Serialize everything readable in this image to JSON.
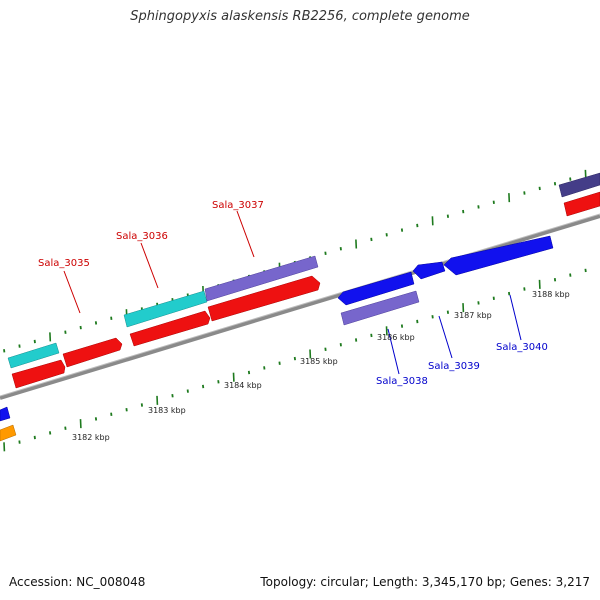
{
  "title": "Sphingopyxis alaskensis RB2256, complete genome",
  "accession": "Accession: NC_008048",
  "summary": "Topology: circular; Length: 3,345,170 bp; Genes: 3,217",
  "colors": {
    "backbone": "#8a8a8a",
    "tick": "#1e7a1e",
    "cds_red": "#ee1111",
    "cds_cyan": "#22cccc",
    "cds_purple": "#7766cc",
    "cds_blue": "#1111ee",
    "cds_orange": "#ff9900",
    "cds_navy": "#443d88",
    "label_red": "#cc0000",
    "label_blue": "#0000cc"
  },
  "kbp_labels": [
    "3182 kbp",
    "3183 kbp",
    "3184 kbp",
    "3185 kbp",
    "3186 kbp",
    "3187 kbp",
    "3188 kbp"
  ],
  "gene_labels": {
    "upper": [
      "Sala_3035",
      "Sala_3036",
      "Sala_3037"
    ],
    "lower": [
      "Sala_3038",
      "Sala_3039",
      "Sala_3040"
    ]
  }
}
